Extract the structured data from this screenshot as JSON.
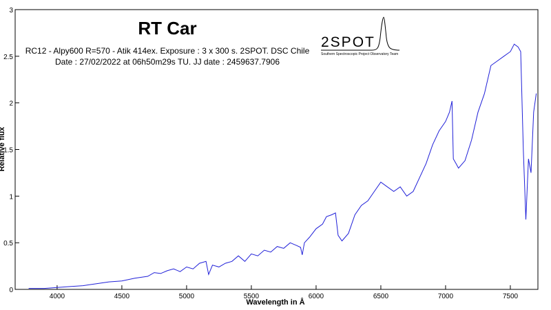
{
  "chart_data": {
    "type": "line",
    "title": "RT Car",
    "subtitle": [
      "RC12 - Alpy600 R=570 - Atik 414ex. Exposure : 3 x 300 s. 2SPOT. DSC Chile",
      "Date : 27/02/2022 at 06h50m29s TU. JJ date : 2459637.7906"
    ],
    "annotations": [
      "2SPOT",
      "Southern Spectroscopic Project Observatory Team"
    ],
    "xlabel": "Wavelength in Å",
    "ylabel": "Relative flux",
    "x": [
      3780,
      3900,
      4000,
      4100,
      4200,
      4300,
      4400,
      4500,
      4600,
      4700,
      4750,
      4800,
      4850,
      4900,
      4950,
      5000,
      5050,
      5100,
      5150,
      5170,
      5200,
      5250,
      5300,
      5350,
      5400,
      5450,
      5500,
      5550,
      5600,
      5650,
      5700,
      5750,
      5800,
      5850,
      5880,
      5893,
      5910,
      5950,
      6000,
      6050,
      6080,
      6120,
      6150,
      6170,
      6200,
      6250,
      6300,
      6350,
      6400,
      6450,
      6500,
      6550,
      6600,
      6650,
      6700,
      6750,
      6800,
      6850,
      6900,
      6950,
      7000,
      7030,
      7050,
      7060,
      7080,
      7100,
      7150,
      7200,
      7250,
      7300,
      7350,
      7400,
      7450,
      7500,
      7530,
      7560,
      7580,
      7600,
      7620,
      7640,
      7660,
      7680,
      7700
    ],
    "series": [
      {
        "name": "RT Car",
        "color": "#1f1fd8",
        "values": [
          0.01,
          0.01,
          0.02,
          0.03,
          0.04,
          0.06,
          0.08,
          0.09,
          0.12,
          0.14,
          0.18,
          0.17,
          0.2,
          0.22,
          0.19,
          0.24,
          0.22,
          0.28,
          0.3,
          0.16,
          0.26,
          0.24,
          0.28,
          0.3,
          0.36,
          0.3,
          0.38,
          0.36,
          0.42,
          0.4,
          0.46,
          0.44,
          0.5,
          0.47,
          0.45,
          0.37,
          0.5,
          0.56,
          0.65,
          0.7,
          0.78,
          0.8,
          0.82,
          0.58,
          0.52,
          0.6,
          0.8,
          0.9,
          0.95,
          1.05,
          1.15,
          1.1,
          1.05,
          1.1,
          1.0,
          1.05,
          1.2,
          1.35,
          1.55,
          1.7,
          1.8,
          1.9,
          2.02,
          1.4,
          1.35,
          1.3,
          1.38,
          1.6,
          1.9,
          2.1,
          2.4,
          2.45,
          2.5,
          2.55,
          2.63,
          2.6,
          2.55,
          1.5,
          0.75,
          1.4,
          1.25,
          1.9,
          2.1
        ]
      }
    ],
    "xlim": [
      3676,
      7713
    ],
    "ylim": [
      0,
      3
    ],
    "xticks": [
      4000,
      4500,
      5000,
      5500,
      6000,
      6500,
      7000,
      7500
    ],
    "yticks": [
      0,
      0.5,
      1,
      1.5,
      2,
      2.5,
      3
    ]
  }
}
